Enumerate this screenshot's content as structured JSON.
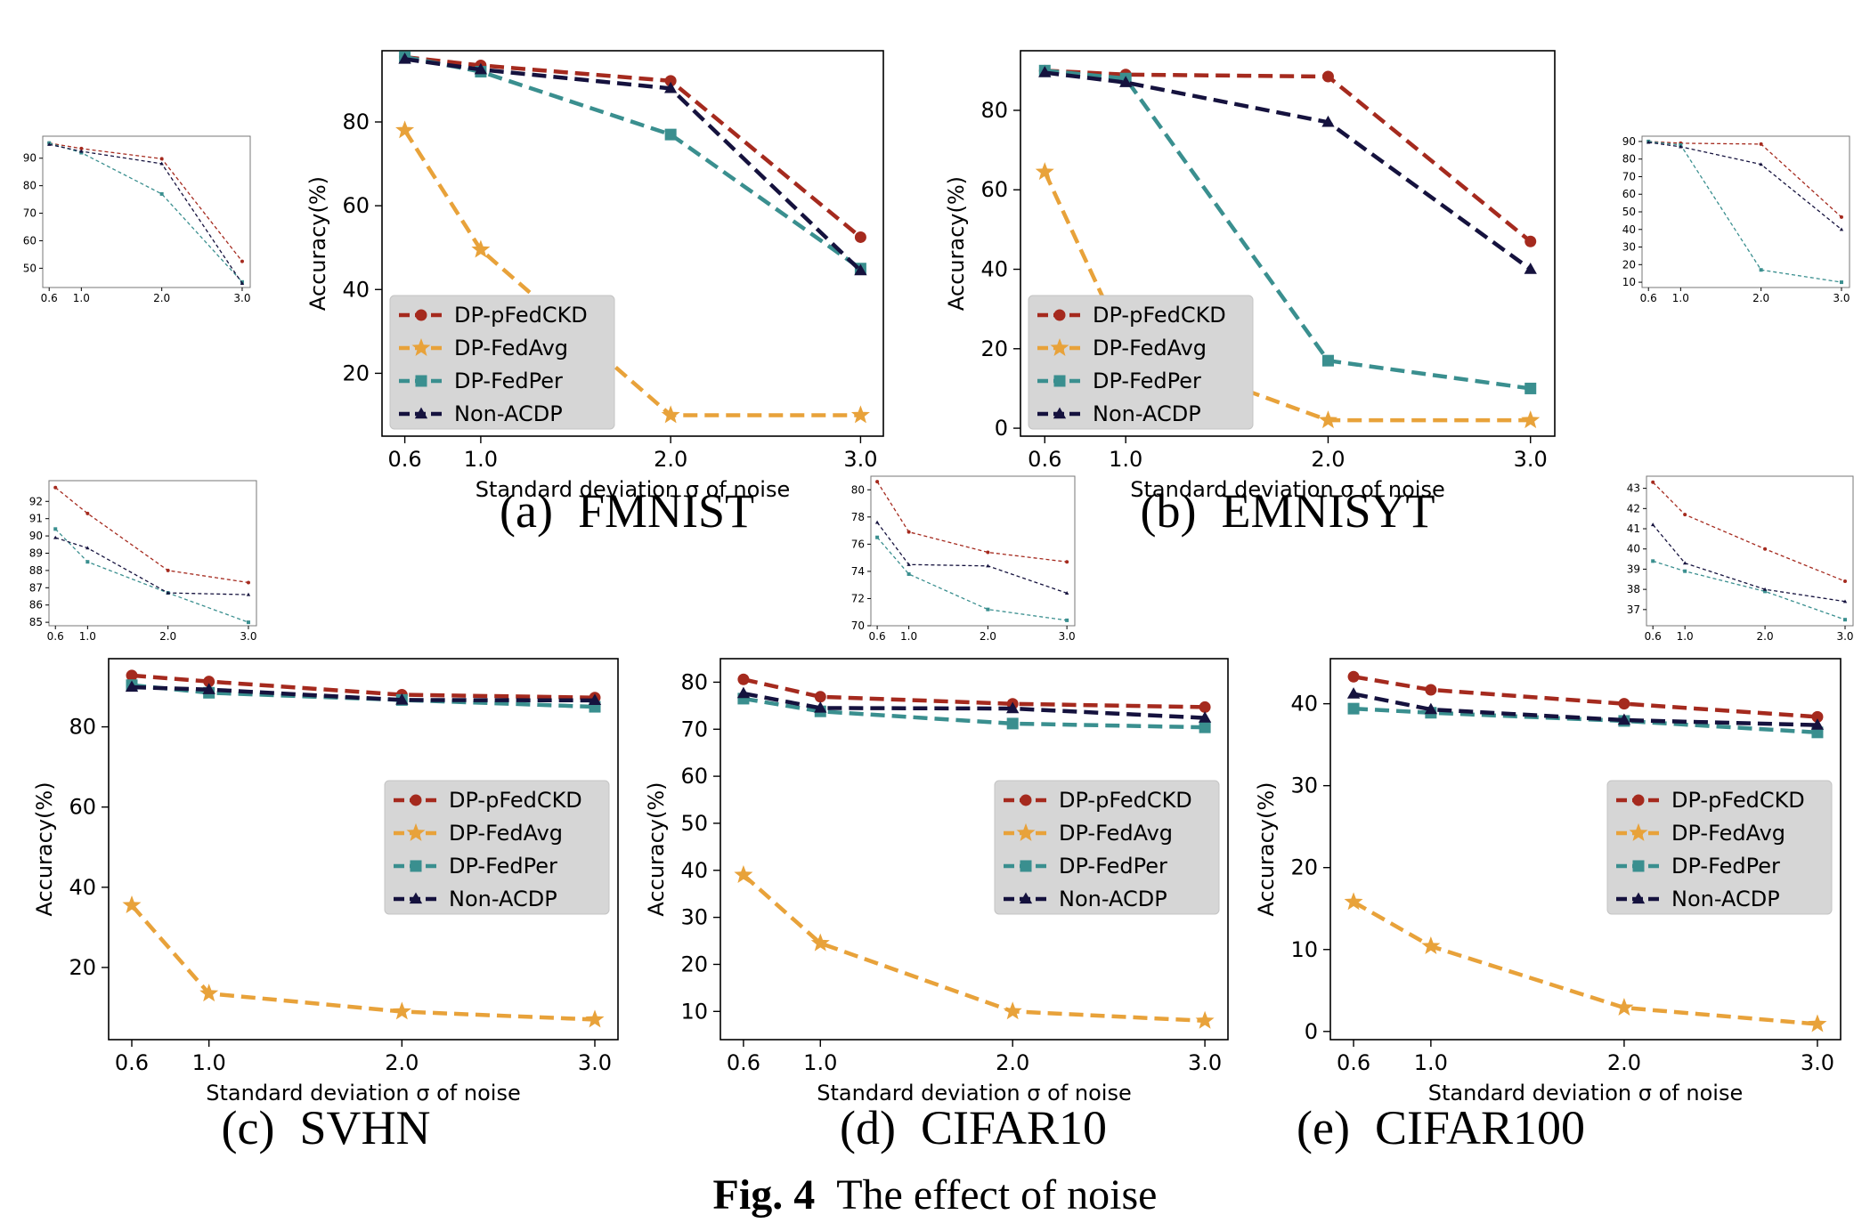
{
  "figure": {
    "caption_label": "Fig. 4",
    "caption_text": "The effect of noise"
  },
  "legend_names": [
    "DP-pFedCKD",
    "DP-FedAvg",
    "DP-FedPer",
    "Non-ACDP"
  ],
  "series_styles": {
    "DP-pFedCKD": {
      "color": "#A52A1E",
      "marker": "circle"
    },
    "DP-FedAvg": {
      "color": "#E8A23A",
      "marker": "star"
    },
    "DP-FedPer": {
      "color": "#3A8F8F",
      "marker": "square"
    },
    "Non-ACDP": {
      "color": "#15123E",
      "marker": "triangle"
    }
  },
  "chart_data": [
    {
      "id": "a",
      "type": "line",
      "caption_letter": "(a)",
      "caption_name": "FMNIST",
      "xlabel": "Standard deviation σ of noise",
      "ylabel": "Accuracy(%)",
      "x": [
        0.6,
        1.0,
        2.0,
        3.0
      ],
      "x_tick_labels": [
        "0.6",
        "1.0",
        "2.0",
        "3.0"
      ],
      "xlim": [
        0.48,
        3.12
      ],
      "ylim": [
        5,
        97
      ],
      "y_ticks": [
        20,
        40,
        60,
        80
      ],
      "legend_position": "lower-left",
      "series": [
        {
          "name": "DP-pFedCKD",
          "values": [
            95.5,
            93.5,
            89.8,
            52.5
          ]
        },
        {
          "name": "DP-FedAvg",
          "values": [
            78.0,
            49.5,
            10.0,
            10.0
          ]
        },
        {
          "name": "DP-FedPer",
          "values": [
            95.5,
            92.0,
            77.0,
            45.0
          ]
        },
        {
          "name": "Non-ACDP",
          "values": [
            95.0,
            92.5,
            88.0,
            44.5
          ]
        }
      ]
    },
    {
      "id": "b",
      "type": "line",
      "caption_letter": "(b)",
      "caption_name": "EMNISYT",
      "xlabel": "Standard deviation σ of noise",
      "ylabel": "Accuracy(%)",
      "x": [
        0.6,
        1.0,
        2.0,
        3.0
      ],
      "x_tick_labels": [
        "0.6",
        "1.0",
        "2.0",
        "3.0"
      ],
      "xlim": [
        0.48,
        3.12
      ],
      "ylim": [
        -2,
        95
      ],
      "y_ticks": [
        0,
        20,
        40,
        60,
        80
      ],
      "legend_position": "lower-left",
      "series": [
        {
          "name": "DP-pFedCKD",
          "values": [
            90.0,
            89.0,
            88.5,
            47.0
          ]
        },
        {
          "name": "DP-FedAvg",
          "values": [
            64.5,
            20.5,
            2.0,
            2.0
          ]
        },
        {
          "name": "DP-FedPer",
          "values": [
            90.0,
            88.0,
            17.0,
            10.0
          ]
        },
        {
          "name": "Non-ACDP",
          "values": [
            89.5,
            87.0,
            77.0,
            40.0
          ]
        }
      ]
    },
    {
      "id": "c",
      "type": "line",
      "caption_letter": "(c)",
      "caption_name": "SVHN",
      "xlabel": "Standard deviation σ of noise",
      "ylabel": "Accuracy(%)",
      "x": [
        0.6,
        1.0,
        2.0,
        3.0
      ],
      "x_tick_labels": [
        "0.6",
        "1.0",
        "2.0",
        "3.0"
      ],
      "xlim": [
        0.48,
        3.12
      ],
      "ylim": [
        2,
        97
      ],
      "y_ticks": [
        20,
        40,
        60,
        80
      ],
      "legend_position": "center-right",
      "series": [
        {
          "name": "DP-pFedCKD",
          "values": [
            92.8,
            91.3,
            88.0,
            87.3
          ]
        },
        {
          "name": "DP-FedAvg",
          "values": [
            35.5,
            13.5,
            9.0,
            7.0
          ]
        },
        {
          "name": "DP-FedPer",
          "values": [
            90.4,
            88.5,
            86.7,
            85.0
          ]
        },
        {
          "name": "Non-ACDP",
          "values": [
            89.9,
            89.3,
            86.7,
            86.6
          ]
        }
      ]
    },
    {
      "id": "d",
      "type": "line",
      "caption_letter": "(d)",
      "caption_name": "CIFAR10",
      "xlabel": "Standard deviation σ of noise",
      "ylabel": "Accuracy(%)",
      "x": [
        0.6,
        1.0,
        2.0,
        3.0
      ],
      "x_tick_labels": [
        "0.6",
        "1.0",
        "2.0",
        "3.0"
      ],
      "xlim": [
        0.48,
        3.12
      ],
      "ylim": [
        4,
        85
      ],
      "y_ticks": [
        10,
        20,
        30,
        40,
        50,
        60,
        70,
        80
      ],
      "legend_position": "center-right",
      "series": [
        {
          "name": "DP-pFedCKD",
          "values": [
            80.6,
            76.9,
            75.4,
            74.7
          ]
        },
        {
          "name": "DP-FedAvg",
          "values": [
            39.0,
            24.5,
            10.0,
            8.0
          ]
        },
        {
          "name": "DP-FedPer",
          "values": [
            76.5,
            73.8,
            71.2,
            70.4
          ]
        },
        {
          "name": "Non-ACDP",
          "values": [
            77.6,
            74.5,
            74.4,
            72.4
          ]
        }
      ]
    },
    {
      "id": "e",
      "type": "line",
      "caption_letter": "(e)",
      "caption_name": "CIFAR100",
      "xlabel": "Standard deviation σ of noise",
      "ylabel": "Accuracy(%)",
      "x": [
        0.6,
        1.0,
        2.0,
        3.0
      ],
      "x_tick_labels": [
        "0.6",
        "1.0",
        "2.0",
        "3.0"
      ],
      "xlim": [
        0.48,
        3.12
      ],
      "ylim": [
        -1,
        45.5
      ],
      "y_ticks": [
        0,
        10,
        20,
        30,
        40
      ],
      "legend_position": "center-right",
      "series": [
        {
          "name": "DP-pFedCKD",
          "values": [
            43.3,
            41.7,
            40.0,
            38.4
          ]
        },
        {
          "name": "DP-FedAvg",
          "values": [
            15.8,
            10.4,
            2.9,
            0.9
          ]
        },
        {
          "name": "DP-FedPer",
          "values": [
            39.4,
            38.9,
            37.9,
            36.5
          ]
        },
        {
          "name": "Non-ACDP",
          "values": [
            41.2,
            39.3,
            38.0,
            37.4
          ]
        }
      ]
    },
    {
      "id": "a-inset",
      "type": "line",
      "inset_of": "a",
      "x": [
        0.6,
        1.0,
        2.0,
        3.0
      ],
      "x_tick_labels": [
        "0.6",
        "1.0",
        "2.0",
        "3.0"
      ],
      "xlim": [
        0.52,
        3.1
      ],
      "ylim": [
        43,
        98
      ],
      "y_ticks": [
        50,
        60,
        70,
        80,
        90
      ],
      "series": [
        {
          "name": "DP-pFedCKD",
          "values": [
            95.5,
            93.5,
            89.8,
            52.5
          ]
        },
        {
          "name": "DP-FedPer",
          "values": [
            95.5,
            92.0,
            77.0,
            45.0
          ]
        },
        {
          "name": "Non-ACDP",
          "values": [
            95.0,
            92.5,
            88.0,
            44.5
          ]
        }
      ]
    },
    {
      "id": "b-inset",
      "type": "line",
      "inset_of": "b",
      "x": [
        0.6,
        1.0,
        2.0,
        3.0
      ],
      "x_tick_labels": [
        "0.6",
        "1.0",
        "2.0",
        "3.0"
      ],
      "xlim": [
        0.52,
        3.1
      ],
      "ylim": [
        7,
        93
      ],
      "y_ticks": [
        10,
        20,
        30,
        40,
        50,
        60,
        70,
        80,
        90
      ],
      "series": [
        {
          "name": "DP-pFedCKD",
          "values": [
            90.0,
            89.0,
            88.5,
            47.0
          ]
        },
        {
          "name": "DP-FedPer",
          "values": [
            90.0,
            88.0,
            17.0,
            10.0
          ]
        },
        {
          "name": "Non-ACDP",
          "values": [
            89.5,
            87.0,
            77.0,
            40.0
          ]
        }
      ]
    },
    {
      "id": "c-inset",
      "type": "line",
      "inset_of": "c",
      "x": [
        0.6,
        1.0,
        2.0,
        3.0
      ],
      "x_tick_labels": [
        "0.6",
        "1.0",
        "2.0",
        "3.0"
      ],
      "xlim": [
        0.52,
        3.1
      ],
      "ylim": [
        84.8,
        93.2
      ],
      "y_ticks": [
        85,
        86,
        87,
        88,
        89,
        90,
        91,
        92
      ],
      "series": [
        {
          "name": "DP-pFedCKD",
          "values": [
            92.8,
            91.3,
            88.0,
            87.3
          ]
        },
        {
          "name": "DP-FedPer",
          "values": [
            90.4,
            88.5,
            86.7,
            85.0
          ]
        },
        {
          "name": "Non-ACDP",
          "values": [
            89.9,
            89.3,
            86.7,
            86.6
          ]
        }
      ]
    },
    {
      "id": "d-inset",
      "type": "line",
      "inset_of": "d",
      "x": [
        0.6,
        1.0,
        2.0,
        3.0
      ],
      "x_tick_labels": [
        "0.6",
        "1.0",
        "2.0",
        "3.0"
      ],
      "xlim": [
        0.52,
        3.1
      ],
      "ylim": [
        70,
        81
      ],
      "y_ticks": [
        70,
        72,
        74,
        76,
        78,
        80
      ],
      "series": [
        {
          "name": "DP-pFedCKD",
          "values": [
            80.6,
            76.9,
            75.4,
            74.7
          ]
        },
        {
          "name": "DP-FedPer",
          "values": [
            76.5,
            73.8,
            71.2,
            70.4
          ]
        },
        {
          "name": "Non-ACDP",
          "values": [
            77.6,
            74.5,
            74.4,
            72.4
          ]
        }
      ]
    },
    {
      "id": "e-inset",
      "type": "line",
      "inset_of": "e",
      "x": [
        0.6,
        1.0,
        2.0,
        3.0
      ],
      "x_tick_labels": [
        "0.6",
        "1.0",
        "2.0",
        "3.0"
      ],
      "xlim": [
        0.52,
        3.1
      ],
      "ylim": [
        36.2,
        43.6
      ],
      "y_ticks": [
        37,
        38,
        39,
        40,
        41,
        42,
        43
      ],
      "series": [
        {
          "name": "DP-pFedCKD",
          "values": [
            43.3,
            41.7,
            40.0,
            38.4
          ]
        },
        {
          "name": "DP-FedPer",
          "values": [
            39.4,
            38.9,
            37.9,
            36.5
          ]
        },
        {
          "name": "Non-ACDP",
          "values": [
            41.2,
            39.3,
            38.0,
            37.4
          ]
        }
      ]
    }
  ]
}
